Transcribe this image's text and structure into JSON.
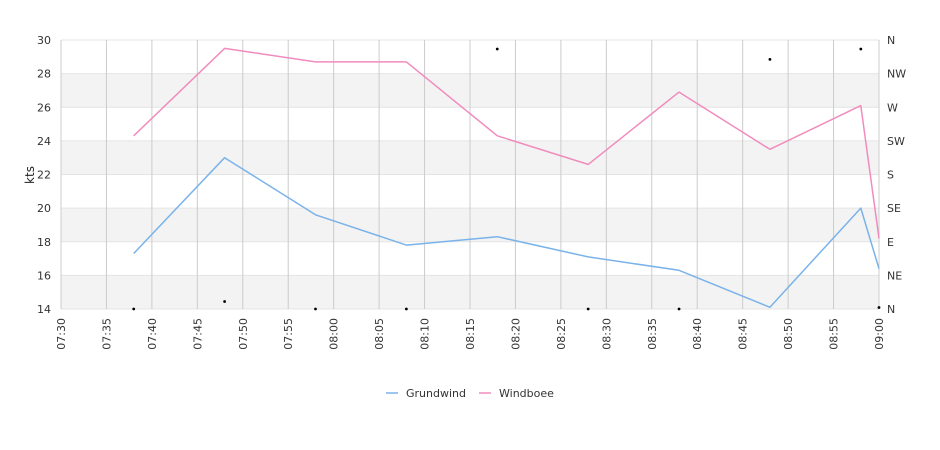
{
  "chart_data": {
    "type": "line",
    "ylabel": "kts",
    "ylim": [
      14,
      30
    ],
    "yticks": [
      14,
      16,
      18,
      20,
      22,
      24,
      26,
      28,
      30
    ],
    "xlim": [
      "07:30",
      "09:00"
    ],
    "xticks": [
      "07:30",
      "07:35",
      "07:40",
      "07:45",
      "07:50",
      "07:55",
      "08:00",
      "08:05",
      "08:10",
      "08:15",
      "08:20",
      "08:25",
      "08:30",
      "08:35",
      "08:40",
      "08:45",
      "08:50",
      "08:55",
      "09:00"
    ],
    "right_axis": {
      "labels": [
        "N",
        "NE",
        "E",
        "SE",
        "S",
        "SW",
        "W",
        "NW",
        "N"
      ]
    },
    "grid": true,
    "legend_position": "bottom-center",
    "colors": {
      "Grundwind": "#7ab3ea",
      "Windboee": "#f08cbd",
      "band": "#f3f3f3",
      "gridline": "#cccccc"
    },
    "series": [
      {
        "name": "Grundwind",
        "x": [
          "07:38",
          "07:48",
          "07:58",
          "08:08",
          "08:18",
          "08:28",
          "08:38",
          "08:48",
          "08:58",
          "09:00"
        ],
        "values": [
          17.3,
          23.0,
          19.6,
          17.8,
          18.3,
          17.1,
          16.3,
          14.1,
          20.0,
          16.4
        ]
      },
      {
        "name": "Windboee",
        "x": [
          "07:38",
          "07:48",
          "07:58",
          "08:08",
          "08:18",
          "08:28",
          "08:38",
          "08:48",
          "08:58",
          "09:00"
        ],
        "values": [
          24.3,
          29.5,
          28.7,
          28.7,
          24.3,
          22.6,
          26.9,
          23.5,
          26.1,
          18.2
        ]
      }
    ],
    "direction_markers": {
      "x": [
        "07:38",
        "07:48",
        "07:58",
        "08:08",
        "08:18",
        "08:28",
        "08:38",
        "08:48",
        "08:58",
        "09:00"
      ],
      "direction_deg": [
        0,
        10,
        0,
        0,
        348,
        0,
        0,
        334,
        348,
        2
      ]
    }
  }
}
